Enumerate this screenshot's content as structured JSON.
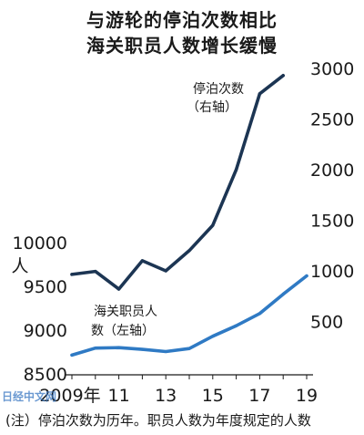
{
  "title_line1": "与游轮的停泊次数相比",
  "title_line2": "海关职员人数增长缓慢",
  "note": "(注）停泊次数为历年。职员人数为年度规定的人数",
  "logo_text": "日经中文网",
  "chart_data": {
    "type": "line",
    "x": [
      2009,
      2010,
      2011,
      2012,
      2013,
      2014,
      2015,
      2016,
      2017,
      2018,
      2019
    ],
    "x_tick_labels": [
      {
        "x": 2009,
        "label": "2009年"
      },
      {
        "x": 2011,
        "label": "11"
      },
      {
        "x": 2013,
        "label": "13"
      },
      {
        "x": 2015,
        "label": "15"
      },
      {
        "x": 2017,
        "label": "17"
      },
      {
        "x": 2019,
        "label": "19"
      }
    ],
    "left_axis": {
      "min": 8500,
      "max": 10000,
      "ticks": [
        8500,
        9000,
        9500,
        10000
      ],
      "unit": "人"
    },
    "right_axis": {
      "min": 0,
      "max": 3000,
      "ticks": [
        500,
        1000,
        1500,
        2000,
        2500,
        3000
      ]
    },
    "series": [
      {
        "name_line1": "停泊次数",
        "name_line2": "（右轴）",
        "axis": "right",
        "color": "#1c3553",
        "x": [
          2009,
          2010,
          2011,
          2012,
          2013,
          2014,
          2015,
          2016,
          2017,
          2018
        ],
        "values": [
          965,
          995,
          820,
          1100,
          1000,
          1200,
          1450,
          2000,
          2750,
          2930
        ]
      },
      {
        "name_line1": "海关职员人",
        "name_line2": "数（左轴）",
        "axis": "left",
        "color": "#2f7ac4",
        "x": [
          2009,
          2010,
          2011,
          2012,
          2013,
          2014,
          2015,
          2016,
          2017,
          2018,
          2019
        ],
        "values": [
          8715,
          8795,
          8800,
          8780,
          8755,
          8790,
          8930,
          9050,
          9190,
          9410,
          9620
        ]
      }
    ]
  }
}
